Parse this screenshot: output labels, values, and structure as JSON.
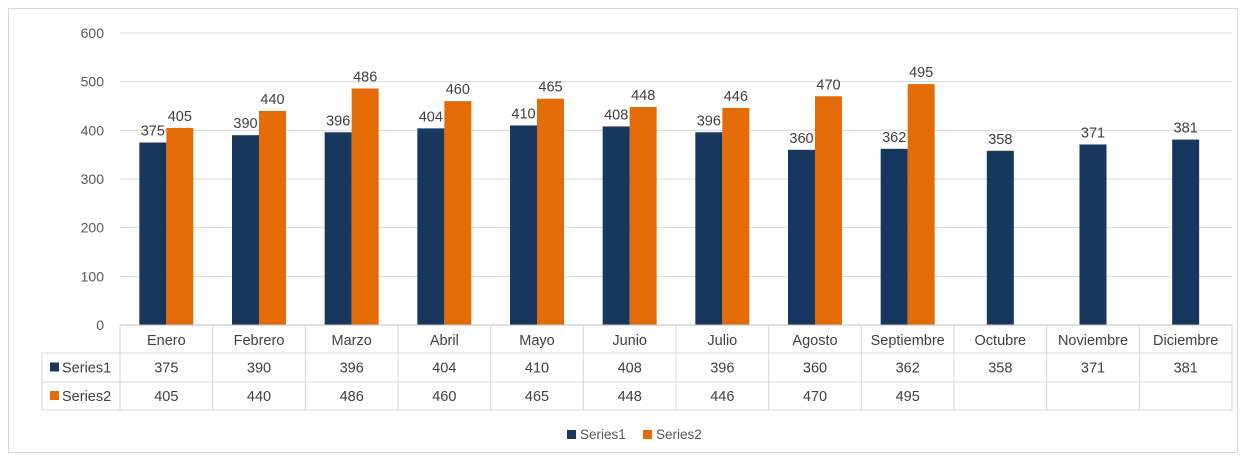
{
  "colors": {
    "series1": "#17375e",
    "series2": "#e36c09",
    "grid": "#d9d9d9",
    "text": "#595959"
  },
  "chart_data": {
    "type": "bar",
    "categories": [
      "Enero",
      "Febrero",
      "Marzo",
      "Abril",
      "Mayo",
      "Junio",
      "Julio",
      "Agosto",
      "Septiembre",
      "Octubre",
      "Noviembre",
      "Diciembre"
    ],
    "series": [
      {
        "name": "Series1",
        "values": [
          375,
          390,
          396,
          404,
          410,
          408,
          396,
          360,
          362,
          358,
          371,
          381
        ]
      },
      {
        "name": "Series2",
        "values": [
          405,
          440,
          486,
          460,
          465,
          448,
          446,
          470,
          495,
          null,
          null,
          null
        ]
      }
    ],
    "ylim": [
      0,
      600
    ],
    "yticks": [
      0,
      100,
      200,
      300,
      400,
      500,
      600
    ],
    "grid": true,
    "data_labels": true,
    "data_table": true,
    "legend_position": "bottom"
  }
}
